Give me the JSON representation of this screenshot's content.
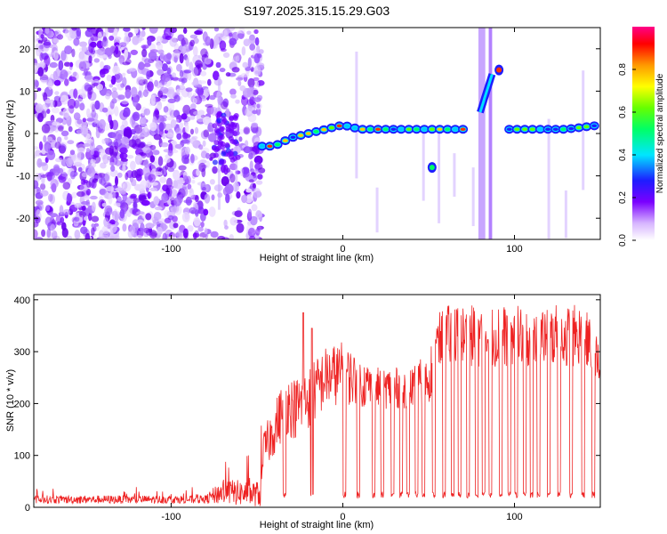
{
  "title": "S197.2025.315.15.29.G03",
  "chart_data": [
    {
      "type": "heatmap",
      "name": "spectrogram",
      "xlabel": "Height of straight line (km)",
      "ylabel": "Frequency (Hz)",
      "xlim": [
        -180,
        150
      ],
      "ylim": [
        -25,
        25
      ],
      "xticks": [
        -100,
        0,
        100
      ],
      "yticks": [
        -20,
        -10,
        0,
        10,
        20
      ],
      "xtick_labels": [
        "-100",
        "0",
        "100"
      ],
      "ytick_labels": [
        "-20",
        "-10",
        "0",
        "10",
        "20"
      ],
      "colorbar": {
        "label": "Normalized spectral amplitude",
        "range": [
          0,
          1
        ],
        "ticks": [
          0,
          0.2,
          0.4,
          0.6,
          0.8
        ],
        "tick_labels": [
          "0.0",
          "0.2",
          "0.4",
          "0.6",
          "0.8"
        ]
      },
      "noise_region_x": [
        -180,
        -47
      ],
      "main_line": {
        "x": [
          -47,
          -40,
          -30,
          -20,
          -10,
          0,
          10,
          20,
          30,
          40,
          50,
          60,
          70,
          78,
          95,
          110,
          120,
          130,
          140,
          150
        ],
        "freq": [
          -3,
          -3,
          -1,
          0,
          1,
          2,
          1,
          1,
          1,
          1,
          1,
          1,
          1,
          1,
          1,
          1,
          1,
          1,
          1.5,
          2
        ]
      },
      "features": [
        {
          "label": "low-frequency blob",
          "x": 52,
          "freq": -8
        },
        {
          "label": "rising band",
          "x": [
            80,
            87
          ],
          "freq": [
            5,
            14
          ]
        },
        {
          "label": "high-frequency peak",
          "x": 91,
          "freq": 15
        }
      ]
    },
    {
      "type": "line",
      "name": "snr",
      "xlabel": "Height of straight line (km)",
      "ylabel": "SNR (10 * v/v)",
      "xlim": [
        -180,
        150
      ],
      "ylim": [
        0,
        410
      ],
      "xticks": [
        -100,
        0,
        100
      ],
      "yticks": [
        0,
        100,
        200,
        300,
        400
      ],
      "xtick_labels": [
        "-100",
        "0",
        "100"
      ],
      "ytick_labels": [
        "0",
        "100",
        "200",
        "300",
        "400"
      ],
      "color": "#ee2222",
      "envelope": {
        "x": [
          -180,
          -80,
          -70,
          -48,
          -47,
          -40,
          -33,
          -28,
          -20,
          -10,
          0,
          10,
          20,
          30,
          40,
          50,
          55,
          60,
          70,
          80,
          90,
          100,
          110,
          120,
          130,
          140,
          145,
          150
        ],
        "base": [
          15,
          15,
          30,
          25,
          100,
          150,
          200,
          190,
          210,
          250,
          260,
          240,
          230,
          230,
          230,
          250,
          310,
          330,
          330,
          330,
          330,
          330,
          330,
          330,
          330,
          330,
          300,
          260
        ],
        "amp": [
          8,
          8,
          25,
          25,
          40,
          50,
          60,
          60,
          60,
          60,
          60,
          50,
          40,
          40,
          40,
          50,
          60,
          60,
          60,
          60,
          60,
          60,
          60,
          60,
          60,
          60,
          60,
          50
        ]
      },
      "spikes": [
        {
          "x": -23,
          "y": 375
        },
        {
          "x": -18,
          "y": 345
        }
      ],
      "dips_x": [
        -34,
        -18,
        1,
        9,
        18,
        23,
        29,
        34,
        38,
        43,
        47,
        53,
        59,
        64,
        68,
        73,
        78,
        82,
        86,
        92,
        97,
        101,
        106,
        110,
        114,
        120,
        126,
        133,
        140,
        146
      ],
      "dip_level": 18
    }
  ]
}
